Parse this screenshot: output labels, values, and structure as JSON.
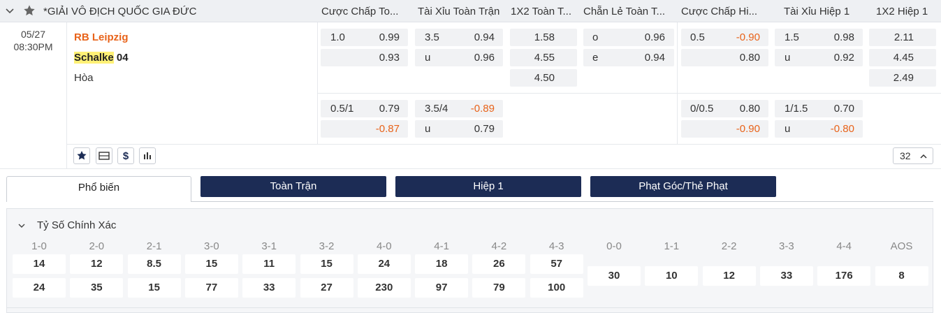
{
  "header": {
    "league": "*GIẢI VÔ ĐỊCH QUỐC GIA ĐỨC",
    "columns": [
      "Cược Chấp To...",
      "Tài Xỉu Toàn Trận",
      "1X2 Toàn T...",
      "Chẵn Lẻ Toàn T...",
      "Cược Chấp Hi...",
      "Tài Xỉu Hiệp 1",
      "1X2 Hiệp 1"
    ]
  },
  "match": {
    "date": "05/27",
    "time": "08:30PM",
    "home": "RB Leipzig",
    "away_highlight": "Schalke",
    "away_rest": " 04",
    "draw": "Hòa",
    "more_count": "32"
  },
  "odds": {
    "row1": {
      "ft_hdp": {
        "line": "1.0",
        "home": "0.99",
        "away": "0.93"
      },
      "ft_ou": {
        "line": "3.5",
        "over": "0.94",
        "u_label": "u",
        "under": "0.96"
      },
      "ft_1x2": {
        "home": "1.58",
        "away": "4.55",
        "draw": "4.50"
      },
      "ft_oe": {
        "o_label": "o",
        "odd": "0.96",
        "e_label": "e",
        "even": "0.94"
      },
      "h1_hdp": {
        "line": "0.5",
        "home": "-0.90",
        "away": "0.80"
      },
      "h1_ou": {
        "line": "1.5",
        "over": "0.98",
        "u_label": "u",
        "under": "0.92"
      },
      "h1_1x2": {
        "home": "2.11",
        "away": "4.45",
        "draw": "2.49"
      }
    },
    "row2": {
      "ft_hdp": {
        "line": "0.5/1",
        "home": "0.79",
        "away": "-0.87"
      },
      "ft_ou": {
        "line": "3.5/4",
        "over": "-0.89",
        "u_label": "u",
        "under": "0.79"
      },
      "h1_hdp": {
        "line": "0/0.5",
        "home": "0.80",
        "away": "-0.90"
      },
      "h1_ou": {
        "line": "1/1.5",
        "over": "0.70",
        "u_label": "u",
        "under": "-0.80"
      }
    }
  },
  "tabs": [
    "Phổ biến",
    "Toàn Trận",
    "Hiệp 1",
    "Phạt Góc/Thẻ Phạt"
  ],
  "correct_score": {
    "title": "Tỷ Số Chính Xác",
    "labels": [
      "1-0",
      "2-0",
      "2-1",
      "3-0",
      "3-1",
      "3-2",
      "4-0",
      "4-1",
      "4-2",
      "4-3",
      "0-0",
      "1-1",
      "2-2",
      "3-3",
      "4-4",
      "AOS"
    ],
    "row1": [
      "14",
      "12",
      "8.5",
      "15",
      "11",
      "15",
      "24",
      "18",
      "26",
      "57"
    ],
    "row2": [
      "24",
      "35",
      "15",
      "77",
      "33",
      "27",
      "230",
      "97",
      "79",
      "100"
    ],
    "draws": [
      "30",
      "10",
      "12",
      "33",
      "176",
      "8"
    ]
  },
  "colors": {
    "accent_orange": "#e8631a",
    "navy": "#1c2c55",
    "highlight": "#fff176"
  }
}
